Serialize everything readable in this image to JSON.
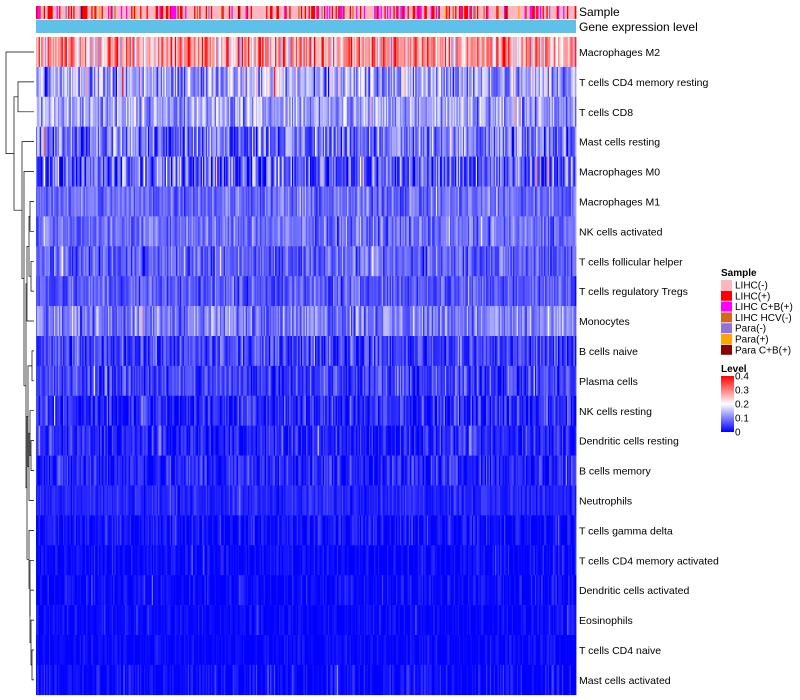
{
  "chart_data": {
    "type": "heatmap",
    "annotation_tracks": [
      "Sample",
      "Gene expression level"
    ],
    "rows": [
      {
        "label": "Macrophages M2",
        "mean": 0.27,
        "spread": 0.09
      },
      {
        "label": "T cells CD4 memory resting",
        "mean": 0.13,
        "spread": 0.08
      },
      {
        "label": "T cells CD8",
        "mean": 0.13,
        "spread": 0.06
      },
      {
        "label": "Mast cells resting",
        "mean": 0.09,
        "spread": 0.07
      },
      {
        "label": "Macrophages M0",
        "mean": 0.07,
        "spread": 0.08
      },
      {
        "label": "Macrophages M1",
        "mean": 0.085,
        "spread": 0.04
      },
      {
        "label": "NK cells activated",
        "mean": 0.085,
        "spread": 0.04
      },
      {
        "label": "T cells follicular helper",
        "mean": 0.075,
        "spread": 0.045
      },
      {
        "label": "T cells regulatory  Tregs",
        "mean": 0.07,
        "spread": 0.04
      },
      {
        "label": "Monocytes",
        "mean": 0.1,
        "spread": 0.05
      },
      {
        "label": "B cells naive",
        "mean": 0.05,
        "spread": 0.045
      },
      {
        "label": "Plasma cells",
        "mean": 0.05,
        "spread": 0.045
      },
      {
        "label": "NK cells resting",
        "mean": 0.03,
        "spread": 0.045
      },
      {
        "label": "Dendritic cells resting",
        "mean": 0.025,
        "spread": 0.04
      },
      {
        "label": "B cells memory",
        "mean": 0.03,
        "spread": 0.04
      },
      {
        "label": "Neutrophils",
        "mean": 0.03,
        "spread": 0.02
      },
      {
        "label": "T cells gamma delta",
        "mean": 0.01,
        "spread": 0.03
      },
      {
        "label": "T cells CD4 memory activated",
        "mean": 0.006,
        "spread": 0.025
      },
      {
        "label": "Dendritic cells activated",
        "mean": 0.006,
        "spread": 0.025
      },
      {
        "label": "Eosinophils",
        "mean": 0.004,
        "spread": 0.02
      },
      {
        "label": "T cells CD4 naive",
        "mean": 0.004,
        "spread": 0.02
      },
      {
        "label": "Mast cells activated",
        "mean": 0.008,
        "spread": 0.03
      }
    ],
    "n_samples": 420,
    "legend_sample": {
      "title": "Sample",
      "entries": [
        {
          "label": "LIHC(-)",
          "color": "#ffb6c1"
        },
        {
          "label": "LIHC(+)",
          "color": "#ff0000"
        },
        {
          "label": "LIHC C+B(+)",
          "color": "#ff00ff"
        },
        {
          "label": "LIHC HCV(-)",
          "color": "#d2691e"
        },
        {
          "label": "Para(-)",
          "color": "#9370db"
        },
        {
          "label": "Para(+)",
          "color": "#ffa500"
        },
        {
          "label": "Para C+B(+)",
          "color": "#8b0000"
        }
      ],
      "proportions": [
        0.55,
        0.24,
        0.11,
        0.03,
        0.04,
        0.02,
        0.01
      ]
    },
    "legend_level": {
      "title": "Level",
      "ticks": [
        "0.4",
        "0.3",
        "0.2",
        "0.1",
        "0"
      ],
      "tick_values": [
        0.4,
        0.3,
        0.2,
        0.1,
        0
      ],
      "range": [
        0,
        0.4
      ],
      "gradient": [
        "#0000ff",
        "#ffffff",
        "#ff0000"
      ]
    },
    "gene_expression_color": "#5ec1ea"
  }
}
